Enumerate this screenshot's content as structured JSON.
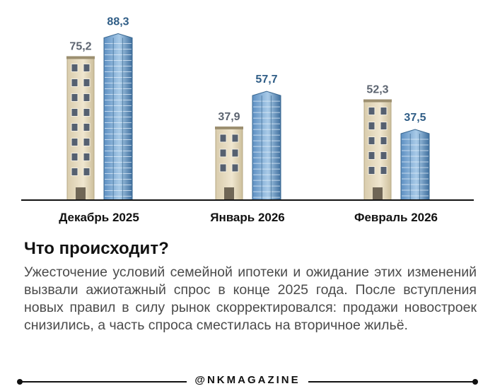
{
  "chart_data": {
    "type": "bar",
    "categories": [
      "Декабрь 2025",
      "Январь 2026",
      "Февраль 2026"
    ],
    "series": [
      {
        "name": "secondary",
        "values": [
          75.2,
          37.9,
          52.3
        ],
        "labels": [
          "75,2",
          "37,9",
          "52,3"
        ]
      },
      {
        "name": "new",
        "values": [
          88.3,
          57.7,
          37.5
        ],
        "labels": [
          "88,3",
          "57,7",
          "37,5"
        ]
      }
    ],
    "ylim": [
      0,
      90
    ],
    "colors": {
      "secondary_label": "#5c6470",
      "new_label": "#2f5d86",
      "axis": "#111111"
    }
  },
  "text": {
    "heading": "Что происходит?",
    "body": "Ужесточение условий семейной ипотеки и ожидание этих изменений вызвали ажиотажный спрос в конце 2025 года. После вступления новых правил в силу рынок скорректировался: продажи новостроек снизились, а часть спроса сместилась на вторичное жильё."
  },
  "footer": {
    "handle": "@NKMAGAZINE"
  }
}
